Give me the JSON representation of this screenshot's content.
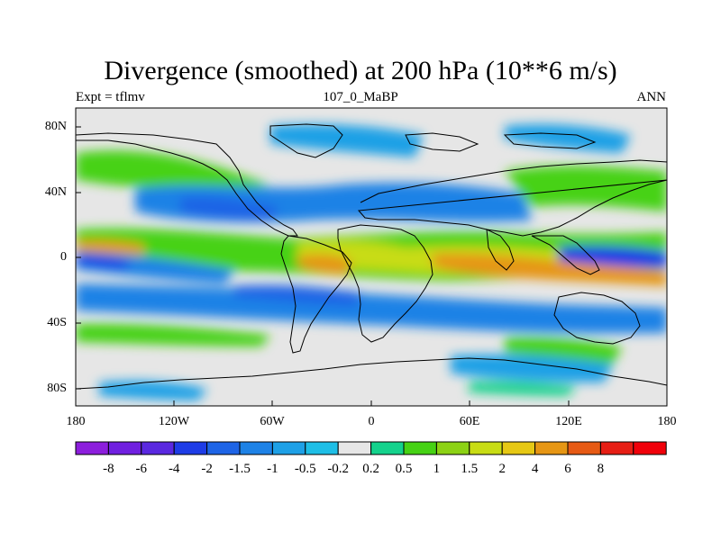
{
  "title": "Divergence (smoothed) at 200 hPa (10**6 m/s)",
  "subtitle_left": "Expt = tflmv",
  "subtitle_center": "107_0_MaBP",
  "subtitle_right": "ANN",
  "lat_labels": [
    "80N",
    "40N",
    "0",
    "40S",
    "80S"
  ],
  "lon_labels": [
    "180",
    "120W",
    "60W",
    "0",
    "60E",
    "120E",
    "180"
  ],
  "legend": {
    "colors": [
      "#8c1edc",
      "#7020e0",
      "#5a28e0",
      "#1e3ce6",
      "#1e64e6",
      "#1e82e6",
      "#1ea0e6",
      "#1ebee6",
      "#e6e6e6",
      "#14d28c",
      "#46d214",
      "#8cd214",
      "#c8dc14",
      "#e6c814",
      "#e69614",
      "#e65a14",
      "#e61e14",
      "#f0000a"
    ],
    "labels": [
      "-8",
      "-6",
      "-4",
      "-2",
      "-1.5",
      "-1",
      "-0.5",
      "-0.2",
      "0.2",
      "0.5",
      "1",
      "1.5",
      "2",
      "4",
      "6",
      "8"
    ]
  },
  "colors": {
    "neutral": "#e6e6e6",
    "coast": "#000000"
  }
}
